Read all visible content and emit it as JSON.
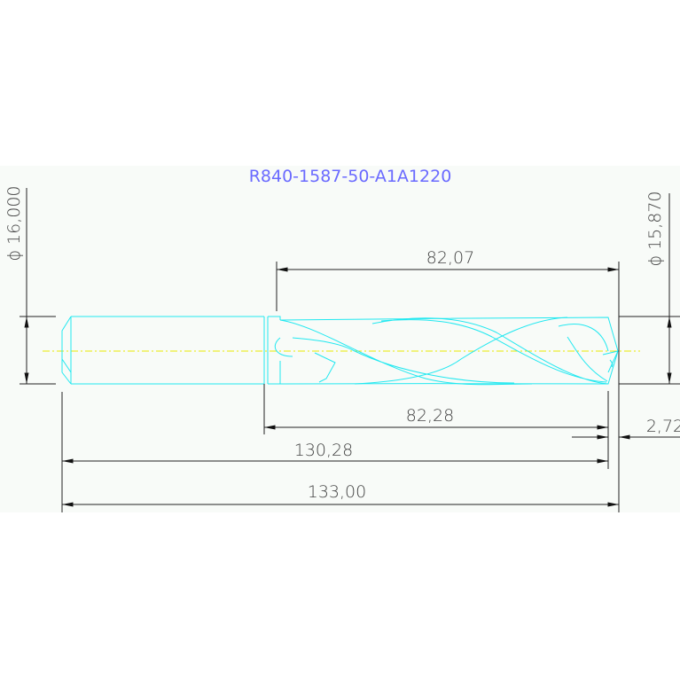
{
  "drawing": {
    "title": "R840-1587-50-A1A1220",
    "colors": {
      "title": "#6a6aff",
      "part_outline": "#22e8f0",
      "centerline": "#e8e800",
      "dimension": "#222222"
    },
    "dimensions": {
      "shank_diameter": "ϕ 16,000",
      "tip_diameter": "ϕ 15,870",
      "flute_length": "82,07",
      "body_length": "82,28",
      "point_length": "2,72",
      "length_to_corner": "130,28",
      "overall_length": "133,00"
    }
  }
}
